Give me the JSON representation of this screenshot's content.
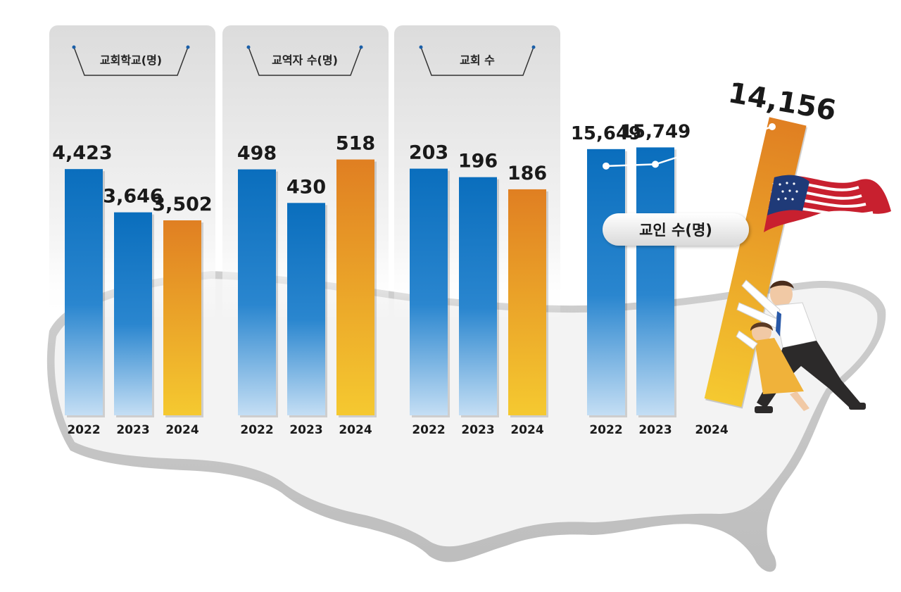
{
  "colors": {
    "blue_top": "#0a6ebd",
    "blue_bottom": "#c4def4",
    "orange_top": "#e07f22",
    "orange_bottom": "#f5c930"
  },
  "chart_data": [
    {
      "type": "bar",
      "title": "교회학교(명)",
      "categories": [
        "2022",
        "2023",
        "2024"
      ],
      "values": [
        4423,
        3646,
        3502
      ],
      "value_labels": [
        "4,423",
        "3,646",
        "3,502"
      ],
      "ylim": [
        0,
        5500
      ]
    },
    {
      "type": "bar",
      "title": "교역자 수(명)",
      "categories": [
        "2022",
        "2023",
        "2024"
      ],
      "values": [
        498,
        430,
        518
      ],
      "value_labels": [
        "498",
        "430",
        "518"
      ],
      "ylim": [
        0,
        620
      ]
    },
    {
      "type": "bar",
      "title": "교회 수",
      "categories": [
        "2022",
        "2023",
        "2024"
      ],
      "values": [
        203,
        196,
        186
      ],
      "value_labels": [
        "203",
        "196",
        "186"
      ],
      "ylim": [
        0,
        252
      ]
    },
    {
      "type": "bar",
      "title": "교인 수(명)",
      "categories": [
        "2022",
        "2023",
        "2024"
      ],
      "values": [
        15649,
        15749,
        14156
      ],
      "value_labels": [
        "15,649",
        "15,749",
        "14,156"
      ],
      "ylim": [
        0,
        18000
      ]
    }
  ]
}
